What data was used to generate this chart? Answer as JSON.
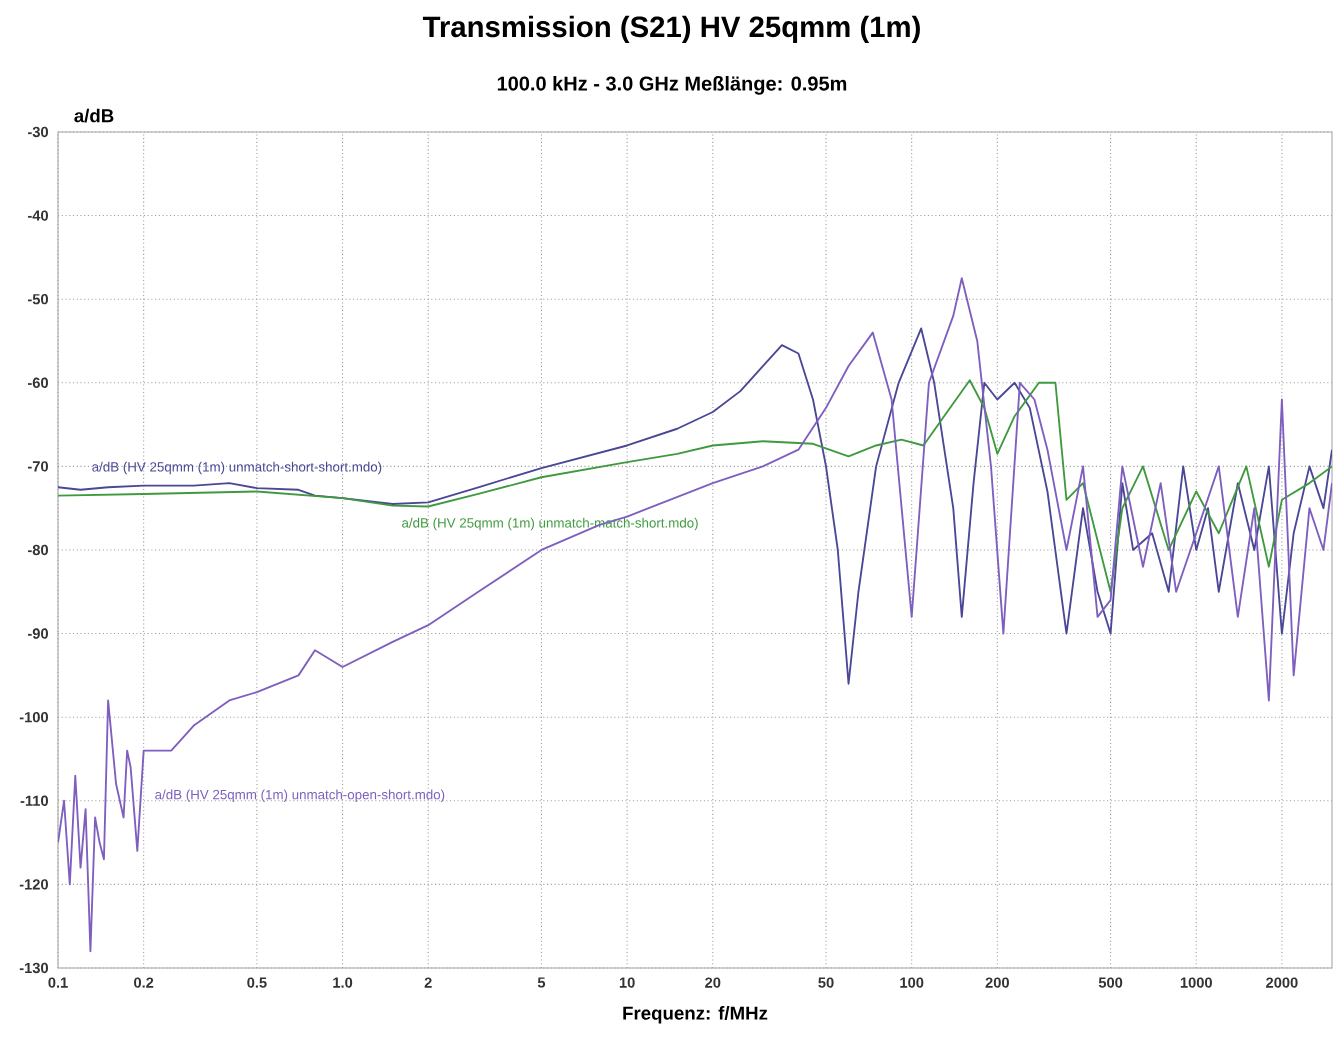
{
  "chart_data": {
    "type": "line",
    "title": "Transmission (S21)    HV 25qmm (1m)",
    "subtitle": "100.0 kHz - 3.0 GHz   Meßlänge: 0.95m",
    "xlabel": "Frequenz: f/MHz",
    "ylabel": "a/dB",
    "log": "x",
    "grid": true,
    "marker": "none",
    "line_style": "solid",
    "xlim": [
      0.1,
      3000
    ],
    "ylim": [
      -130,
      -30
    ],
    "xticks": [
      0.1,
      0.2,
      0.5,
      {
        "value": 1,
        "label": "1.0"
      },
      2,
      5,
      10,
      20,
      50,
      100,
      200,
      500,
      1000,
      2000
    ],
    "yticks": [
      -30,
      -40,
      -50,
      -60,
      -70,
      -80,
      -90,
      -100,
      -110,
      -120,
      -130
    ],
    "series": [
      {
        "name": "a/dB (HV 25qmm (1m) unmatch-short-short.mdo)",
        "color": "#4a4896",
        "x": [
          0.1,
          0.12,
          0.15,
          0.2,
          0.3,
          0.4,
          0.5,
          0.7,
          0.8,
          1.0,
          1.5,
          2,
          3,
          5,
          10,
          15,
          20,
          25,
          30,
          35,
          40,
          45,
          50,
          55,
          60,
          65,
          75,
          90,
          108,
          120,
          140,
          150,
          165,
          180,
          200,
          230,
          260,
          300,
          350,
          400,
          450,
          500,
          550,
          600,
          700,
          800,
          900,
          1000,
          1100,
          1200,
          1400,
          1600,
          1800,
          2000,
          2200,
          2500,
          2800,
          3000
        ],
        "values": [
          -72.5,
          -72.8,
          -72.5,
          -72.3,
          -72.3,
          -72,
          -72.6,
          -72.8,
          -73.5,
          -73.8,
          -74.5,
          -74.3,
          -72.5,
          -70.2,
          -67.5,
          -65.5,
          -63.5,
          -61,
          -58,
          -55.5,
          -56.5,
          -62,
          -70,
          -80,
          -96,
          -85,
          -70,
          -60,
          -53.5,
          -60,
          -75,
          -88,
          -72,
          -60,
          -62,
          -60,
          -63,
          -73,
          -90,
          -75,
          -85,
          -90,
          -72,
          -80,
          -78,
          -85,
          -70,
          -80,
          -75,
          -85,
          -72,
          -80,
          -70,
          -90,
          -78,
          -70,
          -75,
          -68
        ]
      },
      {
        "name": "a/dB (HV 25qmm (1m) unmatch-match-short.mdo)",
        "color": "#3f9a3f",
        "x": [
          0.1,
          0.2,
          0.5,
          1.0,
          1.5,
          2,
          3,
          5,
          10,
          15,
          20,
          30,
          45,
          60,
          75,
          92,
          110,
          130,
          160,
          180,
          200,
          230,
          280,
          320,
          350,
          400,
          500,
          550,
          650,
          800,
          1000,
          1200,
          1500,
          1800,
          2000,
          2500,
          3000
        ],
        "values": [
          -73.5,
          -73.3,
          -73,
          -73.8,
          -74.7,
          -74.8,
          -73.3,
          -71.3,
          -69.5,
          -68.5,
          -67.5,
          -67,
          -67.3,
          -68.8,
          -67.5,
          -66.8,
          -67.5,
          -64,
          -59.7,
          -63,
          -68.5,
          -64,
          -60,
          -60,
          -74,
          -72,
          -85,
          -75,
          -70,
          -80,
          -73,
          -78,
          -70,
          -82,
          -74,
          -72,
          -70
        ]
      },
      {
        "name": "a/dB (HV 25qmm (1m) unmatch-open-short.mdo)",
        "color": "#7e5fbf",
        "x": [
          0.1,
          0.105,
          0.11,
          0.115,
          0.12,
          0.125,
          0.13,
          0.135,
          0.14,
          0.145,
          0.15,
          0.16,
          0.17,
          0.175,
          0.18,
          0.19,
          0.2,
          0.25,
          0.3,
          0.4,
          0.5,
          0.7,
          0.8,
          1.0,
          1.5,
          2,
          3,
          5,
          8,
          10,
          20,
          30,
          40,
          50,
          60,
          73,
          85,
          100,
          115,
          140,
          150,
          170,
          190,
          210,
          240,
          270,
          300,
          350,
          400,
          450,
          500,
          550,
          650,
          750,
          850,
          1000,
          1200,
          1400,
          1600,
          1800,
          2000,
          2200,
          2500,
          2800,
          3000
        ],
        "values": [
          -115,
          -110,
          -120,
          -107,
          -118,
          -111,
          -128,
          -112,
          -115,
          -117,
          -98,
          -108,
          -112,
          -104,
          -106,
          -116,
          -104,
          -104,
          -101,
          -98,
          -97,
          -95,
          -92,
          -94,
          -91,
          -89,
          -85,
          -80,
          -77,
          -76,
          -72,
          -70,
          -68,
          -63,
          -58,
          -54,
          -62,
          -88,
          -60,
          -52,
          -47.5,
          -55,
          -70,
          -90,
          -60,
          -62,
          -68,
          -80,
          -70,
          -88,
          -86,
          -70,
          -82,
          -72,
          -85,
          -78,
          -70,
          -88,
          -75,
          -98,
          -62,
          -95,
          -75,
          -80,
          -72
        ]
      }
    ]
  }
}
